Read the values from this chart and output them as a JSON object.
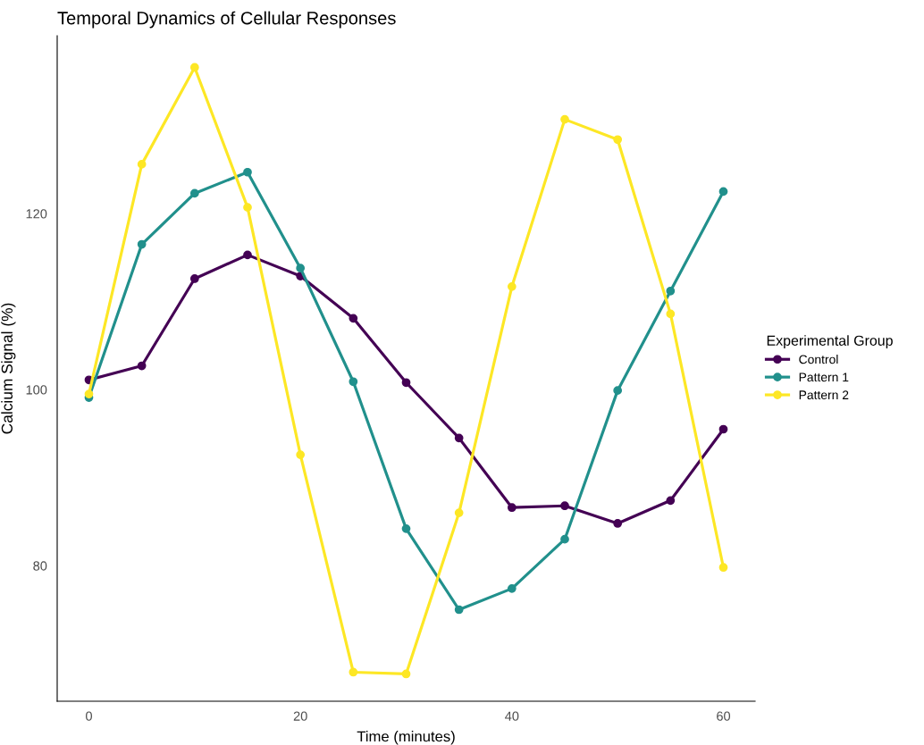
{
  "chart_data": {
    "type": "line",
    "title": "Temporal Dynamics of Cellular Responses",
    "xlabel": "Time (minutes)",
    "ylabel": "Calcium Signal (%)",
    "legend_title": "Experimental Group",
    "legend": "right",
    "grid": false,
    "marker": "circle",
    "line_style": "solid",
    "x": [
      0,
      5,
      10,
      15,
      20,
      25,
      30,
      35,
      40,
      45,
      50,
      55,
      60
    ],
    "xlim": [
      -3,
      63
    ],
    "xticks": [
      0,
      20,
      40,
      60
    ],
    "ylim": [
      64.6,
      140.2
    ],
    "yticks": [
      80,
      100,
      120
    ],
    "series": [
      {
        "name": "Control",
        "color": "#440154",
        "values": [
          101.1,
          102.7,
          112.6,
          115.3,
          112.9,
          108.1,
          100.8,
          94.5,
          86.6,
          86.8,
          84.8,
          87.4,
          95.5
        ]
      },
      {
        "name": "Pattern 1",
        "color": "#21908c",
        "values": [
          99.1,
          116.5,
          122.3,
          124.7,
          113.8,
          100.9,
          84.2,
          75.0,
          77.4,
          83.0,
          99.9,
          111.2,
          122.5
        ]
      },
      {
        "name": "Pattern 2",
        "color": "#fde725",
        "values": [
          99.5,
          125.6,
          136.6,
          120.7,
          92.6,
          67.9,
          67.7,
          86.0,
          111.7,
          130.7,
          128.4,
          108.6,
          79.8
        ]
      }
    ]
  }
}
